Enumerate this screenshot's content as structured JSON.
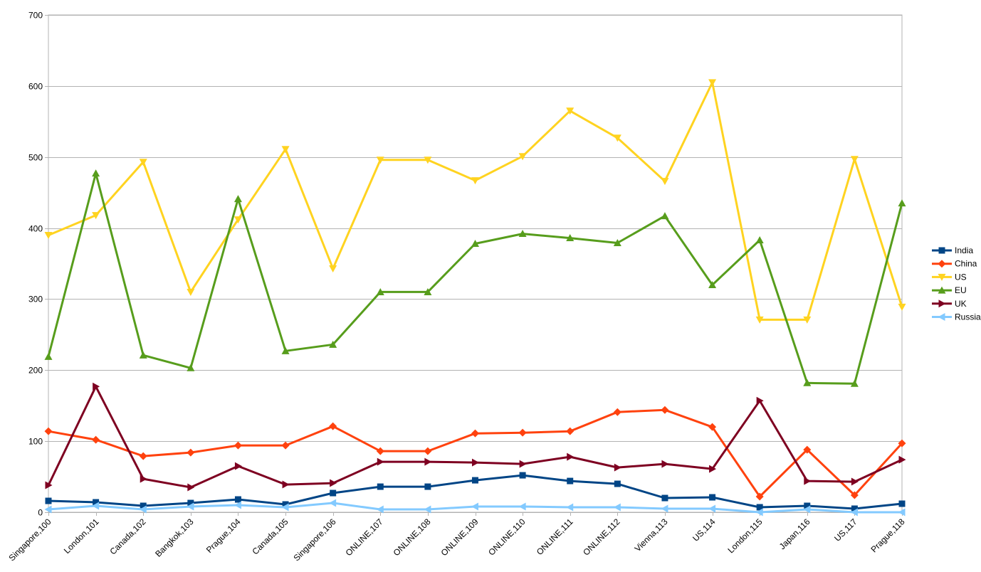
{
  "chart_data": {
    "type": "line",
    "title": "",
    "xlabel": "",
    "ylabel": "",
    "ylim": [
      0,
      700
    ],
    "yticks": [
      0,
      100,
      200,
      300,
      400,
      500,
      600,
      700
    ],
    "grid": "horizontal",
    "legend_position": "right",
    "categories": [
      "Singapore,100",
      "London,101",
      "Canada,102",
      "Bangkok,103",
      "Prague,104",
      "Canada,105",
      "Singapore,106",
      "ONLINE,107",
      "ONLINE,108",
      "ONLINE,109",
      "ONLINE,110",
      "ONLINE,111",
      "ONLINE,112",
      "Vienna,113",
      "US,114",
      "London,115",
      "Japan,116",
      "US,117",
      "Prague,118"
    ],
    "series": [
      {
        "name": "India",
        "color": "#004586",
        "marker": "square",
        "values": [
          16,
          14,
          9,
          13,
          18,
          11,
          27,
          36,
          36,
          45,
          52,
          44,
          40,
          20,
          21,
          7,
          9,
          5,
          12
        ]
      },
      {
        "name": "China",
        "color": "#ff420e",
        "marker": "diamond",
        "values": [
          114,
          102,
          79,
          84,
          94,
          94,
          121,
          86,
          86,
          111,
          112,
          114,
          141,
          144,
          120,
          22,
          88,
          24,
          97
        ]
      },
      {
        "name": "US",
        "color": "#ffd320",
        "marker": "triangle-down",
        "values": [
          390,
          418,
          493,
          310,
          412,
          511,
          343,
          496,
          496,
          467,
          501,
          565,
          527,
          466,
          605,
          271,
          271,
          497,
          289
        ]
      },
      {
        "name": "EU",
        "color": "#579d1c",
        "marker": "triangle-up",
        "values": [
          219,
          477,
          221,
          203,
          441,
          227,
          236,
          310,
          310,
          378,
          392,
          386,
          379,
          417,
          320,
          383,
          182,
          181,
          435
        ]
      },
      {
        "name": "UK",
        "color": "#7e0021",
        "marker": "triangle-right",
        "values": [
          38,
          177,
          47,
          35,
          65,
          39,
          41,
          71,
          71,
          70,
          68,
          78,
          63,
          68,
          61,
          157,
          44,
          43,
          74
        ]
      },
      {
        "name": "Russia",
        "color": "#83caff",
        "marker": "triangle-left",
        "values": [
          4,
          9,
          4,
          8,
          10,
          7,
          13,
          4,
          4,
          8,
          8,
          7,
          7,
          5,
          5,
          0,
          4,
          0,
          0
        ]
      }
    ]
  }
}
